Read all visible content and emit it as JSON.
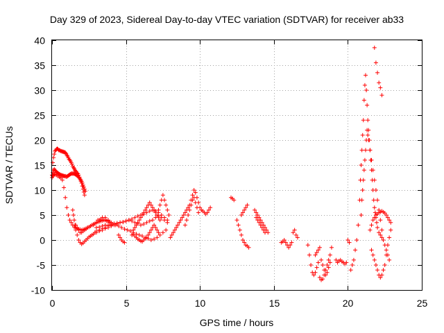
{
  "chart_data": {
    "type": "scatter",
    "title": "Day 329 of 2023, Sidereal Day-to-day VTEC variation (SDTVAR) for receiver ab33",
    "xlabel": "GPS time / hours",
    "ylabel": "SDTVAR / TECUs",
    "xlim": [
      0,
      25
    ],
    "ylim": [
      -10,
      40
    ],
    "xticks": [
      0,
      5,
      10,
      15,
      20,
      25
    ],
    "yticks": [
      -10,
      -5,
      0,
      5,
      10,
      15,
      20,
      25,
      30,
      35,
      40
    ],
    "grid": true,
    "marker": "+",
    "color": "#ff0000",
    "series": [
      {
        "name": "SDTVAR",
        "x": [
          0.0,
          0.05,
          0.1,
          0.15,
          0.2,
          0.25,
          0.3,
          0.35,
          0.4,
          0.45,
          0.5,
          0.55,
          0.6,
          0.65,
          0.7,
          0.75,
          0.8,
          0.85,
          0.9,
          0.95,
          1.0,
          1.05,
          1.1,
          1.15,
          1.2,
          1.25,
          1.3,
          1.35,
          1.4,
          1.45,
          1.5,
          1.55,
          1.6,
          1.65,
          1.7,
          1.75,
          1.8,
          1.85,
          1.9,
          1.95,
          2.0,
          2.05,
          2.1,
          2.15,
          2.2,
          0.0,
          0.05,
          0.1,
          0.15,
          0.2,
          0.25,
          0.3,
          0.35,
          0.4,
          0.45,
          0.5,
          0.55,
          0.6,
          0.65,
          0.7,
          0.75,
          0.8,
          0.85,
          0.9,
          0.95,
          1.0,
          1.05,
          1.1,
          1.15,
          1.2,
          1.25,
          1.3,
          1.35,
          1.4,
          1.45,
          1.5,
          1.55,
          1.6,
          1.65,
          1.7,
          1.75,
          1.8,
          1.85,
          1.9,
          1.95,
          2.0,
          2.05,
          2.1,
          2.15,
          2.2,
          2.25,
          0.0,
          0.05,
          0.1,
          0.15,
          0.2,
          0.3,
          0.4,
          0.5,
          0.6,
          0.7,
          0.8,
          0.9,
          1.0,
          1.1,
          1.2,
          1.3,
          1.4,
          1.5,
          1.6,
          1.7,
          1.8,
          1.9,
          2.0,
          2.1,
          2.2,
          2.3,
          2.4,
          2.5,
          2.6,
          2.7,
          2.8,
          2.9,
          3.0,
          3.1,
          3.2,
          3.3,
          3.4,
          3.5,
          3.6,
          3.7,
          3.8,
          3.9,
          4.0,
          1.4,
          1.45,
          1.5,
          1.55,
          1.6,
          1.7,
          1.8,
          1.9,
          2.0,
          2.1,
          2.2,
          2.3,
          2.4,
          2.5,
          2.6,
          2.7,
          2.8,
          2.9,
          3.0,
          3.2,
          3.4,
          3.6,
          3.8,
          4.0,
          1.6,
          1.7,
          1.8,
          1.9,
          2.0,
          2.1,
          2.2,
          2.3,
          2.4,
          2.6,
          2.8,
          3.0,
          3.2,
          3.4,
          3.6,
          3.8,
          3.0,
          3.2,
          3.4,
          3.6,
          3.8,
          4.0,
          4.2,
          4.4,
          4.6,
          4.8,
          5.0,
          5.2,
          5.4,
          5.6,
          5.8,
          6.0,
          6.2,
          6.4,
          6.6,
          6.8,
          7.0,
          7.2,
          7.4,
          7.6,
          7.8,
          3.0,
          3.2,
          3.4,
          3.6,
          3.8,
          4.0,
          4.2,
          4.4,
          4.6,
          4.8,
          5.0,
          5.2,
          5.4,
          5.6,
          5.8,
          6.0,
          6.2,
          6.4,
          6.6,
          6.8,
          7.0,
          7.2,
          7.4,
          7.6,
          7.8,
          3.1,
          3.3,
          3.5,
          3.7,
          3.9,
          4.1,
          4.3,
          4.5,
          4.7,
          4.9,
          5.1,
          5.3,
          5.5,
          5.7,
          5.9,
          6.1,
          6.3,
          6.5,
          6.7,
          6.9,
          7.1,
          7.3,
          7.5,
          7.7,
          5.5,
          5.6,
          5.7,
          5.8,
          5.9,
          6.0,
          6.1,
          6.2,
          6.3,
          6.4,
          6.5,
          6.6,
          6.7,
          6.8,
          6.9,
          7.0,
          7.1,
          7.2,
          7.3,
          5.4,
          5.5,
          5.6,
          5.7,
          5.8,
          5.9,
          6.0,
          6.1,
          6.2,
          6.3,
          6.4,
          6.5,
          6.6,
          6.7,
          6.8,
          6.9,
          7.0,
          7.1,
          7.2,
          4.5,
          4.6,
          4.7,
          4.8,
          4.9,
          7.2,
          7.3,
          7.4,
          7.5,
          7.6,
          7.7,
          7.8,
          7.9,
          8.0,
          8.1,
          8.2,
          8.3,
          8.4,
          8.5,
          8.6,
          8.7,
          8.8,
          8.9,
          9.0,
          9.1,
          9.2,
          9.3,
          9.4,
          9.5,
          9.6,
          9.7,
          9.8,
          9.9,
          10.0,
          10.1,
          10.2,
          10.3,
          10.4,
          10.5,
          10.6,
          10.7,
          9.0,
          9.1,
          9.2,
          9.3,
          9.4,
          9.5,
          9.6,
          9.7,
          9.8,
          9.9,
          12.1,
          12.2,
          12.3,
          12.5,
          12.6,
          12.7,
          12.8,
          12.9,
          13.0,
          13.1,
          13.2,
          13.3,
          12.8,
          12.9,
          13.0,
          13.1,
          13.2,
          13.7,
          13.8,
          13.9,
          14.0,
          14.1,
          14.2,
          14.3,
          14.4,
          14.5,
          14.6,
          13.8,
          13.9,
          14.0,
          14.1,
          14.2,
          14.3,
          14.4,
          15.5,
          15.6,
          15.7,
          15.8,
          15.9,
          16.0,
          16.1,
          16.2,
          16.3,
          16.4,
          16.5,
          16.6,
          17.3,
          17.4,
          17.5,
          17.6,
          17.7,
          17.8,
          17.9,
          18.0,
          18.1,
          18.2,
          18.3,
          18.4,
          18.5,
          18.6,
          18.7,
          18.8,
          18.9,
          17.8,
          17.9,
          18.0,
          18.1,
          18.2,
          18.3,
          18.4,
          18.5,
          18.6,
          18.7,
          18.8,
          19.2,
          19.3,
          19.4,
          19.5,
          19.6,
          19.7,
          19.8,
          19.9,
          20.0,
          20.1,
          20.2,
          20.3,
          20.4,
          20.5,
          20.6,
          20.7,
          20.8,
          20.85,
          20.9,
          20.95,
          21.0,
          21.05,
          21.1,
          21.15,
          21.2,
          21.25,
          21.3,
          21.35,
          21.4,
          21.45,
          21.5,
          21.55,
          21.6,
          21.65,
          21.7,
          21.75,
          21.8,
          21.85,
          21.9,
          21.95,
          22.0,
          22.1,
          22.2,
          22.3,
          20.9,
          20.95,
          21.0,
          21.05,
          21.1,
          21.15,
          21.2,
          21.25,
          21.3,
          21.35,
          21.4,
          21.5,
          21.6,
          21.7,
          21.8,
          21.9,
          22.0,
          22.1,
          22.2,
          22.3,
          22.4,
          22.5,
          22.6,
          22.7,
          22.8,
          21.5,
          21.6,
          21.7,
          21.8,
          21.9,
          22.0,
          22.1,
          22.2,
          22.3,
          22.4,
          22.5,
          22.6,
          22.7,
          22.8,
          22.9,
          21.6,
          21.7,
          21.8,
          21.9,
          22.0,
          22.1,
          22.2,
          22.3,
          22.4,
          22.5,
          22.6,
          22.7,
          22.8,
          22.9,
          21.8,
          21.9,
          22.0,
          22.1,
          22.2,
          22.3
        ],
        "y": [
          13.0,
          15.5,
          16.5,
          17.2,
          17.8,
          18.0,
          18.2,
          18.3,
          18.2,
          18.0,
          18.0,
          17.9,
          17.8,
          17.8,
          17.7,
          17.7,
          17.6,
          17.6,
          17.5,
          17.3,
          17.0,
          16.8,
          16.5,
          16.2,
          16.0,
          15.8,
          15.5,
          15.2,
          14.8,
          14.5,
          14.3,
          14.0,
          13.8,
          13.6,
          13.4,
          13.3,
          13.0,
          12.6,
          12.2,
          11.8,
          11.4,
          10.8,
          10.2,
          9.6,
          9.0,
          13.0,
          13.5,
          14.0,
          14.2,
          14.0,
          13.8,
          13.6,
          13.5,
          13.4,
          13.3,
          13.2,
          13.1,
          13.0,
          13.0,
          12.9,
          12.9,
          12.8,
          12.8,
          12.8,
          12.7,
          12.7,
          12.8,
          12.9,
          13.0,
          13.1,
          13.2,
          13.3,
          13.3,
          13.3,
          13.3,
          13.3,
          13.2,
          13.1,
          13.0,
          12.9,
          12.8,
          12.6,
          12.4,
          12.2,
          12.0,
          11.7,
          11.4,
          11.0,
          10.6,
          10.2,
          9.8,
          12.5,
          12.8,
          13.0,
          13.2,
          13.1,
          13.0,
          12.8,
          12.6,
          12.4,
          12.0,
          10.5,
          8.5,
          6.5,
          5.0,
          4.0,
          3.5,
          3.0,
          2.6,
          2.4,
          2.3,
          2.2,
          2.1,
          2.0,
          2.1,
          2.2,
          2.3,
          2.5,
          2.6,
          2.8,
          3.0,
          3.2,
          3.3,
          3.5,
          3.6,
          3.7,
          3.8,
          3.9,
          4.0,
          4.0,
          3.9,
          3.8,
          3.6,
          3.5,
          6.0,
          5.0,
          4.0,
          3.0,
          2.0,
          1.0,
          0.0,
          -0.5,
          -0.8,
          -0.6,
          -0.3,
          0.0,
          0.3,
          0.6,
          0.8,
          1.0,
          1.2,
          1.5,
          1.8,
          2.0,
          2.3,
          2.5,
          2.8,
          3.0,
          3.0,
          2.5,
          2.0,
          1.5,
          1.5,
          1.8,
          2.0,
          2.2,
          2.5,
          2.8,
          3.0,
          3.5,
          4.0,
          4.5,
          4.5,
          4.0,
          1.5,
          1.8,
          2.0,
          2.3,
          2.5,
          2.8,
          3.0,
          3.2,
          3.5,
          3.6,
          3.8,
          4.0,
          4.2,
          4.5,
          4.8,
          5.0,
          5.2,
          5.5,
          5.8,
          6.0,
          5.8,
          5.5,
          5.0,
          4.5,
          4.0,
          2.5,
          2.6,
          2.8,
          3.0,
          3.0,
          3.2,
          3.3,
          3.4,
          3.5,
          3.6,
          3.8,
          4.0,
          3.8,
          3.5,
          3.3,
          3.0,
          3.2,
          3.5,
          3.8,
          4.0,
          4.5,
          4.8,
          4.5,
          4.0,
          3.5,
          4.0,
          4.2,
          4.0,
          3.8,
          3.5,
          3.2,
          3.0,
          2.8,
          2.5,
          2.2,
          2.0,
          1.8,
          1.5,
          1.2,
          1.0,
          0.8,
          0.5,
          0.3,
          0.0,
          0.2,
          0.5,
          1.0,
          1.5,
          2.0,
          2.0,
          2.5,
          3.0,
          3.5,
          4.0,
          4.5,
          5.0,
          5.5,
          6.0,
          6.5,
          7.0,
          7.5,
          7.0,
          6.5,
          6.0,
          5.5,
          5.0,
          4.5,
          4.0,
          1.0,
          1.2,
          0.8,
          0.5,
          0.2,
          0.0,
          -0.2,
          -0.3,
          0.0,
          0.3,
          0.5,
          1.0,
          1.5,
          2.0,
          2.5,
          3.0,
          2.5,
          2.0,
          1.5,
          1.0,
          0.5,
          0.0,
          -0.3,
          -0.5,
          6.0,
          7.0,
          8.0,
          9.0,
          8.0,
          7.0,
          6.0,
          5.0,
          0.5,
          1.0,
          1.5,
          2.0,
          2.5,
          3.0,
          3.5,
          4.0,
          4.5,
          5.0,
          5.5,
          6.0,
          6.5,
          7.0,
          8.0,
          9.0,
          10.0,
          9.5,
          8.5,
          7.5,
          6.5,
          6.0,
          5.8,
          5.5,
          5.2,
          5.5,
          6.0,
          6.5,
          3.0,
          4.0,
          5.0,
          6.0,
          7.0,
          8.0,
          8.5,
          7.5,
          6.5,
          5.5,
          8.5,
          8.3,
          8.0,
          4.0,
          3.0,
          2.0,
          1.0,
          0.0,
          -0.5,
          -1.0,
          -1.2,
          -1.5,
          5.0,
          5.5,
          6.0,
          6.5,
          7.0,
          6.0,
          5.5,
          5.0,
          4.5,
          4.0,
          3.5,
          3.0,
          2.5,
          2.0,
          1.5,
          4.5,
          4.0,
          3.5,
          3.0,
          2.5,
          2.0,
          1.5,
          -0.5,
          -0.3,
          0.0,
          -0.5,
          -1.0,
          -1.5,
          -1.0,
          -0.5,
          1.5,
          2.0,
          1.0,
          0.5,
          -1.0,
          -3.0,
          -5.0,
          -6.5,
          -7.0,
          -6.5,
          -5.5,
          -4.5,
          -7.5,
          -8.0,
          -7.8,
          -7.0,
          -6.0,
          -5.0,
          -4.0,
          -3.0,
          -1.5,
          -3.0,
          -2.5,
          -2.0,
          -1.5,
          -4.0,
          -5.0,
          -6.0,
          -7.0,
          -6.5,
          -5.5,
          -4.5,
          -4.0,
          -4.5,
          -4.2,
          -4.0,
          -4.3,
          -4.5,
          -4.8,
          -4.5,
          0.0,
          -0.5,
          -6.0,
          -5.0,
          -4.0,
          -2.0,
          0.0,
          3.0,
          8.0,
          12.0,
          15.0,
          18.0,
          21.0,
          24.0,
          28.0,
          31.0,
          33.0,
          30.0,
          27.0,
          24.0,
          22.0,
          20.0,
          18.0,
          16.0,
          14.0,
          12.0,
          10.0,
          8.0,
          6.5,
          5.5,
          4.5,
          3.5,
          2.5,
          1.5,
          1.0,
          0.5,
          5.0,
          8.0,
          10.0,
          12.0,
          14.0,
          16.0,
          18.0,
          20.0,
          22.0,
          21.0,
          20.0,
          18.0,
          16.0,
          14.0,
          12.0,
          10.0,
          8.0,
          6.0,
          4.0,
          2.0,
          0.0,
          -1.0,
          -2.0,
          -3.0,
          -4.0,
          2.0,
          3.0,
          4.0,
          4.5,
          5.0,
          5.2,
          5.5,
          5.6,
          5.8,
          5.6,
          5.4,
          5.0,
          4.5,
          4.0,
          3.5,
          -2.0,
          -3.0,
          -4.0,
          -5.0,
          -6.0,
          -7.0,
          -7.5,
          -7.0,
          -6.0,
          -5.0,
          -3.0,
          -1.0,
          0.5,
          2.0,
          38.5,
          35.5,
          33.5,
          31.5,
          30.5,
          29.0
        ]
      }
    ]
  }
}
